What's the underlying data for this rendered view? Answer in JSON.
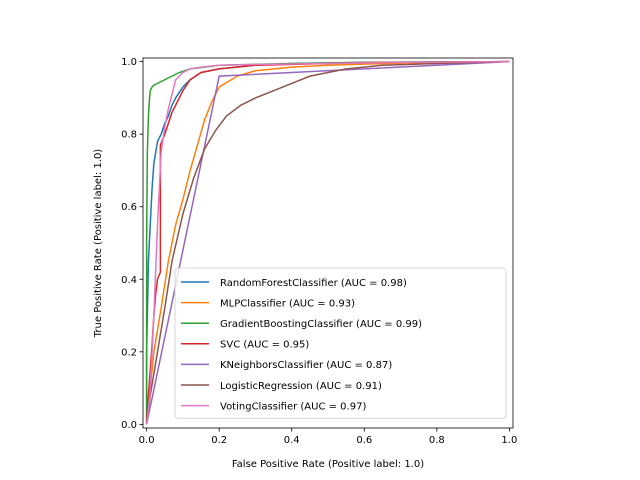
{
  "chart_data": {
    "type": "line",
    "title": "",
    "xlabel": "False Positive Rate (Positive label: 1.0)",
    "ylabel": "True Positive Rate (Positive label: 1.0)",
    "xlim": [
      -0.01,
      1.01
    ],
    "ylim": [
      -0.01,
      1.01
    ],
    "xticks": [
      0.0,
      0.2,
      0.4,
      0.6,
      0.8,
      1.0
    ],
    "xtick_labels": [
      "0.0",
      "0.2",
      "0.4",
      "0.6",
      "0.8",
      "1.0"
    ],
    "yticks": [
      0.0,
      0.2,
      0.4,
      0.6,
      0.8,
      1.0
    ],
    "ytick_labels": [
      "0.0",
      "0.2",
      "0.4",
      "0.6",
      "0.8",
      "1.0"
    ],
    "grid": false,
    "legend_position": "lower-right",
    "series": [
      {
        "name": "RandomForestClassifier (AUC = 0.98)",
        "color": "#1f77b4",
        "x": [
          0,
          0,
          0.005,
          0.01,
          0.015,
          0.02,
          0.025,
          0.03,
          0.04,
          0.05,
          0.06,
          0.07,
          0.08,
          0.1,
          0.12,
          0.15,
          0.2,
          0.3,
          0.4,
          0.6,
          1.0
        ],
        "y": [
          0,
          0.2,
          0.45,
          0.55,
          0.65,
          0.72,
          0.75,
          0.78,
          0.8,
          0.83,
          0.85,
          0.88,
          0.9,
          0.93,
          0.95,
          0.97,
          0.98,
          0.99,
          0.995,
          0.998,
          1.0
        ]
      },
      {
        "name": "MLPClassifier (AUC = 0.93)",
        "color": "#ff7f0e",
        "x": [
          0,
          0.01,
          0.02,
          0.04,
          0.06,
          0.08,
          0.1,
          0.12,
          0.14,
          0.16,
          0.18,
          0.2,
          0.25,
          0.3,
          0.4,
          0.5,
          0.6,
          0.7,
          0.8,
          0.9,
          1.0
        ],
        "y": [
          0,
          0.1,
          0.2,
          0.32,
          0.45,
          0.55,
          0.62,
          0.7,
          0.77,
          0.84,
          0.89,
          0.93,
          0.96,
          0.975,
          0.985,
          0.99,
          0.993,
          0.996,
          0.998,
          0.999,
          1.0
        ]
      },
      {
        "name": "GradientBoostingClassifier (AUC = 0.99)",
        "color": "#2ca02c",
        "x": [
          0,
          0,
          0.002,
          0.005,
          0.008,
          0.01,
          0.015,
          0.02,
          0.03,
          0.05,
          0.07,
          0.09,
          0.12,
          0.2,
          0.4,
          0.6,
          1.0
        ],
        "y": [
          0,
          0.5,
          0.75,
          0.85,
          0.9,
          0.92,
          0.93,
          0.935,
          0.94,
          0.95,
          0.96,
          0.97,
          0.98,
          0.99,
          0.995,
          0.998,
          1.0
        ]
      },
      {
        "name": "SVC (AUC = 0.95)",
        "color": "#d62728",
        "x": [
          0,
          0.005,
          0.01,
          0.015,
          0.02,
          0.025,
          0.03,
          0.038,
          0.038,
          0.05,
          0.06,
          0.07,
          0.08,
          0.1,
          0.12,
          0.15,
          0.2,
          0.3,
          0.5,
          0.65,
          1.0
        ],
        "y": [
          0,
          0.08,
          0.15,
          0.22,
          0.3,
          0.36,
          0.4,
          0.42,
          0.77,
          0.8,
          0.83,
          0.86,
          0.88,
          0.92,
          0.95,
          0.97,
          0.98,
          0.99,
          0.995,
          0.998,
          1.0
        ]
      },
      {
        "name": "KNeighborsClassifier (AUC = 0.87)",
        "color": "#9467bd",
        "x": [
          0,
          0.2,
          1.0
        ],
        "y": [
          0,
          0.96,
          1.0
        ]
      },
      {
        "name": "LogisticRegression (AUC = 0.91)",
        "color": "#8c564b",
        "x": [
          0,
          0.01,
          0.03,
          0.05,
          0.07,
          0.1,
          0.13,
          0.16,
          0.19,
          0.22,
          0.26,
          0.3,
          0.35,
          0.4,
          0.45,
          0.5,
          0.55,
          0.6,
          0.65,
          0.8,
          1.0
        ],
        "y": [
          0,
          0.08,
          0.2,
          0.32,
          0.45,
          0.58,
          0.68,
          0.76,
          0.81,
          0.85,
          0.88,
          0.9,
          0.92,
          0.94,
          0.96,
          0.97,
          0.98,
          0.985,
          0.99,
          0.995,
          1.0
        ]
      },
      {
        "name": "VotingClassifier (AUC = 0.97)",
        "color": "#e377c2",
        "x": [
          0,
          0.003,
          0.006,
          0.01,
          0.02,
          0.03,
          0.04,
          0.05,
          0.06,
          0.07,
          0.08,
          0.1,
          0.12,
          0.15,
          0.2,
          0.3,
          0.5,
          0.7,
          1.0
        ],
        "y": [
          0,
          0.02,
          0.05,
          0.1,
          0.3,
          0.55,
          0.75,
          0.82,
          0.87,
          0.91,
          0.95,
          0.97,
          0.98,
          0.985,
          0.99,
          0.992,
          0.995,
          0.998,
          1.0
        ]
      }
    ]
  }
}
